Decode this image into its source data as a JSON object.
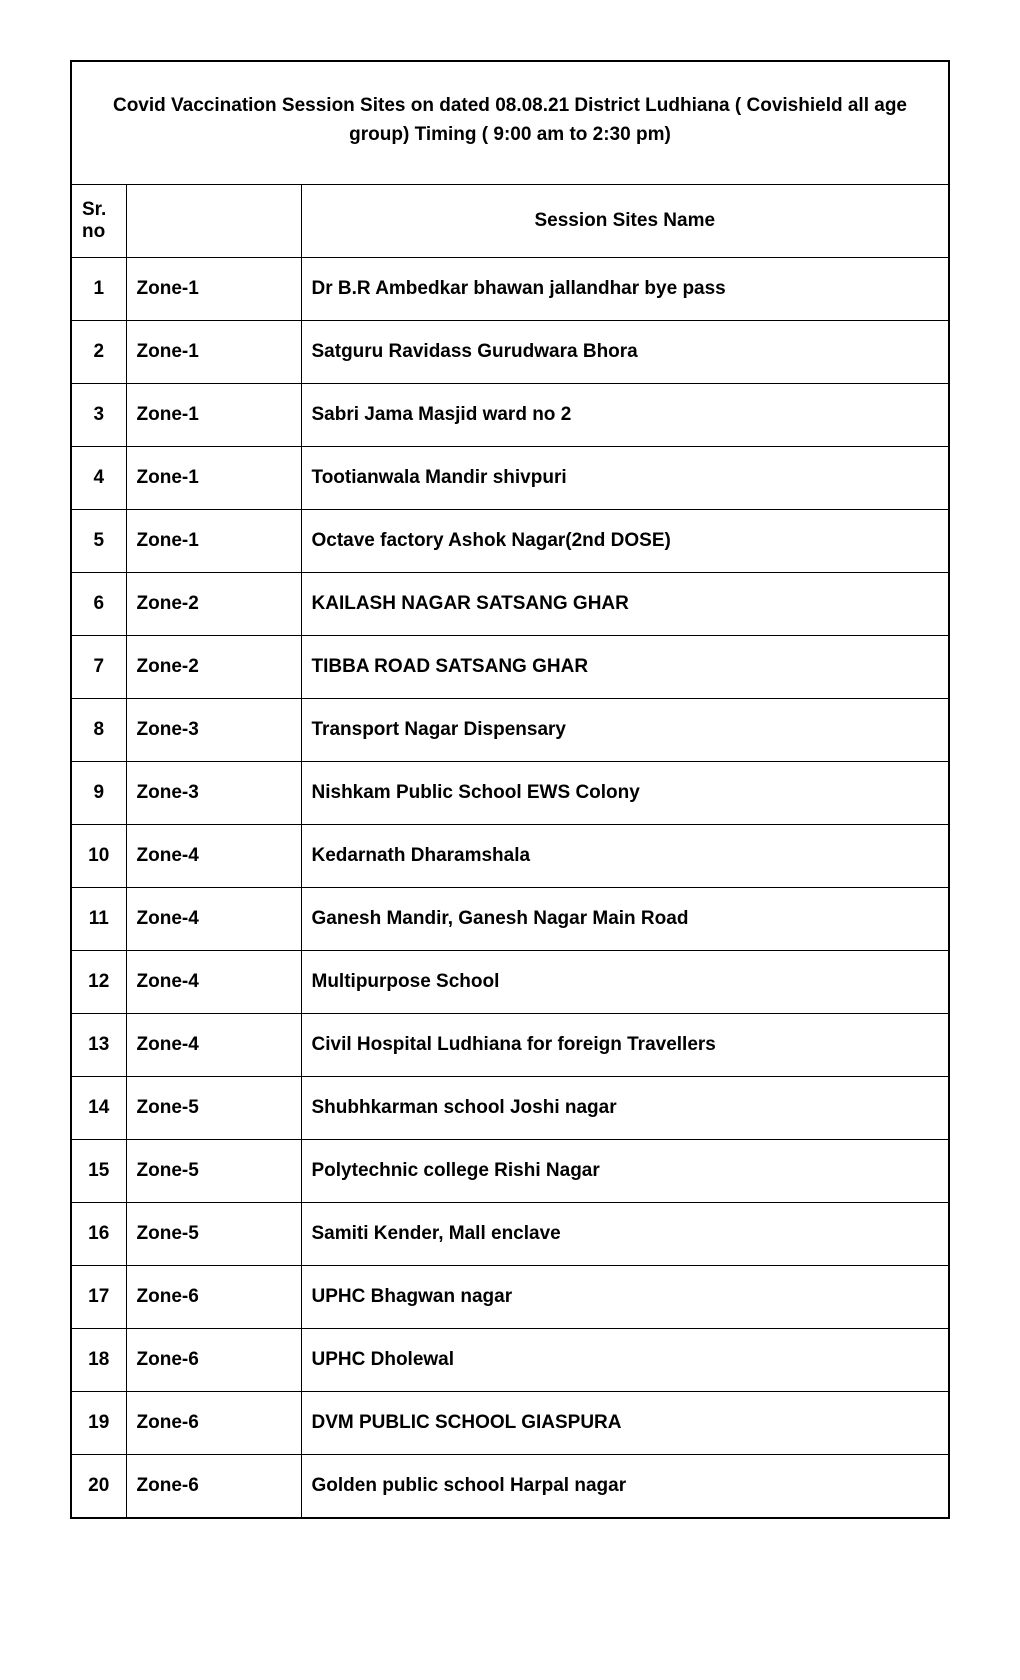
{
  "title": "Covid Vaccination Session Sites on dated 08.08.21 District Ludhiana  ( Covishield all age group) Timing ( 9:00 am to 2:30 pm)",
  "headers": {
    "sr": "Sr. no",
    "zone": "",
    "site": "Session Sites Name"
  },
  "rows": [
    {
      "sr": "1",
      "zone": "Zone-1",
      "site": "Dr B.R Ambedkar bhawan jallandhar bye pass"
    },
    {
      "sr": "2",
      "zone": "Zone-1",
      "site": "Satguru Ravidass Gurudwara Bhora"
    },
    {
      "sr": "3",
      "zone": "Zone-1",
      "site": "Sabri Jama Masjid ward no 2"
    },
    {
      "sr": "4",
      "zone": "Zone-1",
      "site": "Tootianwala Mandir shivpuri"
    },
    {
      "sr": "5",
      "zone": "Zone-1",
      "site": "Octave factory Ashok Nagar(2nd DOSE)"
    },
    {
      "sr": "6",
      "zone": "Zone-2",
      "site": "KAILASH NAGAR SATSANG GHAR"
    },
    {
      "sr": "7",
      "zone": "Zone-2",
      "site": "TIBBA ROAD SATSANG GHAR"
    },
    {
      "sr": "8",
      "zone": "Zone-3",
      "site": "Transport Nagar Dispensary"
    },
    {
      "sr": "9",
      "zone": "Zone-3",
      "site": "Nishkam Public School EWS Colony"
    },
    {
      "sr": "10",
      "zone": "Zone-4",
      "site": "Kedarnath Dharamshala"
    },
    {
      "sr": "11",
      "zone": "Zone-4",
      "site": "Ganesh Mandir, Ganesh Nagar Main Road"
    },
    {
      "sr": "12",
      "zone": "Zone-4",
      "site": "Multipurpose School"
    },
    {
      "sr": "13",
      "zone": "Zone-4",
      "site": "Civil Hospital Ludhiana for foreign Travellers"
    },
    {
      "sr": "14",
      "zone": "Zone-5",
      "site": "Shubhkarman school Joshi nagar"
    },
    {
      "sr": "15",
      "zone": "Zone-5",
      "site": "Polytechnic college Rishi Nagar"
    },
    {
      "sr": "16",
      "zone": "Zone-5",
      "site": "Samiti Kender, Mall enclave"
    },
    {
      "sr": "17",
      "zone": "Zone-6",
      "site": "UPHC  Bhagwan nagar"
    },
    {
      "sr": "18",
      "zone": "Zone-6",
      "site": "UPHC Dholewal"
    },
    {
      "sr": "19",
      "zone": "Zone-6",
      "site": "DVM PUBLIC SCHOOL GIASPURA"
    },
    {
      "sr": "20",
      "zone": "Zone-6",
      "site": "Golden public school Harpal nagar"
    }
  ],
  "styling": {
    "font_family": "Arial",
    "title_fontsize": 19,
    "header_fontsize": 19,
    "cell_fontsize": 19,
    "font_weight": "bold",
    "border_color": "#000000",
    "background_color": "#ffffff",
    "text_color": "#000000",
    "col_widths": {
      "sr": 55,
      "zone": 175,
      "site": "auto"
    }
  }
}
